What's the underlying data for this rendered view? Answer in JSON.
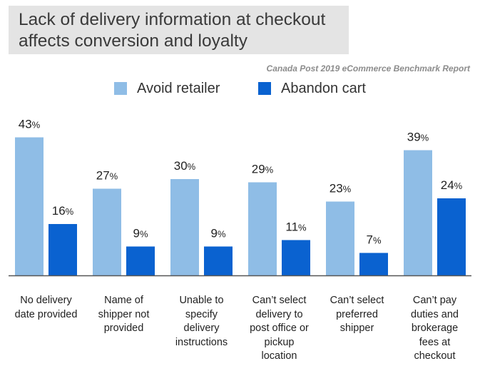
{
  "title_lines": [
    "Lack of delivery information at checkout",
    "affects conversion and loyalty"
  ],
  "source": "Canada Post 2019 eCommerce Benchmark Report",
  "colors": {
    "avoid": "#8fbde6",
    "abandon": "#0a62d0",
    "title_bg": "#e4e4e4",
    "axis": "#555555"
  },
  "chart_data": {
    "type": "bar",
    "title": "Lack of delivery information at checkout affects conversion and loyalty",
    "legend_position": "top",
    "ylim": [
      0,
      45
    ],
    "grid": false,
    "categories": [
      [
        "No delivery",
        "date provided"
      ],
      [
        "Name of",
        "shipper not",
        "provided"
      ],
      [
        "Unable to",
        "specify",
        "delivery",
        "instructions"
      ],
      [
        "Can’t select",
        "delivery to",
        "post office or",
        "pickup",
        "location"
      ],
      [
        "Can’t select",
        "preferred",
        "shipper"
      ],
      [
        "Can’t pay",
        "duties and",
        "brokerage",
        "fees at",
        "checkout"
      ]
    ],
    "series": [
      {
        "name": "Avoid retailer",
        "values": [
          43,
          27,
          30,
          29,
          23,
          39
        ]
      },
      {
        "name": "Abandon cart",
        "values": [
          16,
          9,
          9,
          11,
          7,
          24
        ]
      }
    ],
    "value_suffix": "%"
  }
}
